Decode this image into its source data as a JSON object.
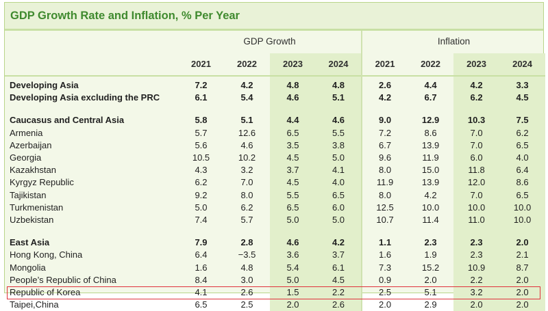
{
  "title": "GDP Growth Rate and Inflation, % Per Year",
  "groups": {
    "gdp": "GDP Growth",
    "inflation": "Inflation"
  },
  "years": [
    "2021",
    "2022",
    "2023",
    "2024",
    "2021",
    "2022",
    "2023",
    "2024"
  ],
  "rows": [
    {
      "label": "Developing Asia",
      "bold": true,
      "values": [
        "7.2",
        "4.2",
        "4.8",
        "4.8",
        "2.6",
        "4.4",
        "4.2",
        "3.3"
      ]
    },
    {
      "label": "Developing Asia excluding the PRC",
      "bold": true,
      "values": [
        "6.1",
        "5.4",
        "4.6",
        "5.1",
        "4.2",
        "6.7",
        "6.2",
        "4.5"
      ]
    },
    {
      "gap": true
    },
    {
      "label": "Caucasus and Central Asia",
      "bold": true,
      "values": [
        "5.8",
        "5.1",
        "4.4",
        "4.6",
        "9.0",
        "12.9",
        "10.3",
        "7.5"
      ]
    },
    {
      "label": "Armenia",
      "values": [
        "5.7",
        "12.6",
        "6.5",
        "5.5",
        "7.2",
        "8.6",
        "7.0",
        "6.2"
      ]
    },
    {
      "label": "Azerbaijan",
      "values": [
        "5.6",
        "4.6",
        "3.5",
        "3.8",
        "6.7",
        "13.9",
        "7.0",
        "6.5"
      ]
    },
    {
      "label": "Georgia",
      "values": [
        "10.5",
        "10.2",
        "4.5",
        "5.0",
        "9.6",
        "11.9",
        "6.0",
        "4.0"
      ]
    },
    {
      "label": "Kazakhstan",
      "values": [
        "4.3",
        "3.2",
        "3.7",
        "4.1",
        "8.0",
        "15.0",
        "11.8",
        "6.4"
      ]
    },
    {
      "label": "Kyrgyz Republic",
      "values": [
        "6.2",
        "7.0",
        "4.5",
        "4.0",
        "11.9",
        "13.9",
        "12.0",
        "8.6"
      ]
    },
    {
      "label": "Tajikistan",
      "values": [
        "9.2",
        "8.0",
        "5.5",
        "6.5",
        "8.0",
        "4.2",
        "7.0",
        "6.5"
      ]
    },
    {
      "label": "Turkmenistan",
      "values": [
        "5.0",
        "6.2",
        "6.5",
        "6.0",
        "12.5",
        "10.0",
        "10.0",
        "10.0"
      ]
    },
    {
      "label": "Uzbekistan",
      "values": [
        "7.4",
        "5.7",
        "5.0",
        "5.0",
        "10.7",
        "11.4",
        "11.0",
        "10.0"
      ]
    },
    {
      "gap": true
    },
    {
      "label": "East Asia",
      "bold": true,
      "values": [
        "7.9",
        "2.8",
        "4.6",
        "4.2",
        "1.1",
        "2.3",
        "2.3",
        "2.0"
      ]
    },
    {
      "label": "Hong Kong, China",
      "values": [
        "6.4",
        "−3.5",
        "3.6",
        "3.7",
        "1.6",
        "1.9",
        "2.3",
        "2.1"
      ]
    },
    {
      "label": "Mongolia",
      "values": [
        "1.6",
        "4.8",
        "5.4",
        "6.1",
        "7.3",
        "15.2",
        "10.9",
        "8.7"
      ]
    },
    {
      "label": "People’s Republic of China",
      "values": [
        "8.4",
        "3.0",
        "5.0",
        "4.5",
        "0.9",
        "2.0",
        "2.2",
        "2.0"
      ]
    },
    {
      "label": "Republic of Korea",
      "highlight": true,
      "values": [
        "4.1",
        "2.6",
        "1.5",
        "2.2",
        "2.5",
        "5.1",
        "3.2",
        "2.0"
      ]
    },
    {
      "label": "Taipei,China",
      "values": [
        "6.5",
        "2.5",
        "2.0",
        "2.6",
        "2.0",
        "2.9",
        "2.0",
        "2.0"
      ]
    }
  ],
  "colors": {
    "title_text": "#3f8a2e",
    "panel_bg": "#f3f8e8",
    "shaded_column": "#e2efcb",
    "highlight_border": "#e0303a"
  }
}
